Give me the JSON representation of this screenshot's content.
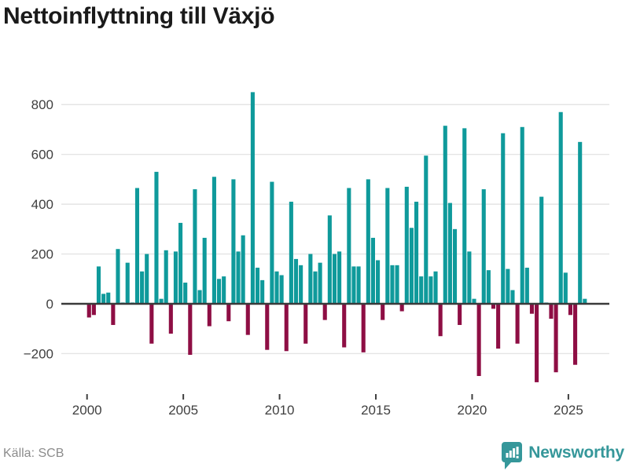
{
  "header": {
    "title": "Nettoinflyttning till Växjö"
  },
  "footer": {
    "source": "Källa: SCB",
    "brand": "Newsworthy"
  },
  "colors": {
    "positive": "#0f9a9b",
    "negative": "#8e0e44",
    "grid": "#e4e4e4",
    "zero_line": "#3a3a3a",
    "axis_text": "#3f3f3f",
    "title_text": "#1a1a1a",
    "source_text": "#8c8c8c",
    "brand_teal": "#35979a"
  },
  "chart_data": {
    "type": "bar",
    "title": "Nettoinflyttning till Växjö",
    "xlabel": "",
    "ylabel": "",
    "frequency": "quarterly",
    "x_start": "2000 Q1",
    "x_end": "2025 Q4",
    "x_tick_labels": [
      "2000",
      "2005",
      "2010",
      "2015",
      "2020",
      "2025"
    ],
    "y_ticks": [
      800,
      600,
      400,
      200,
      0,
      -200
    ],
    "ylim": [
      -340,
      880
    ],
    "grid": true,
    "legend": false,
    "series": [
      {
        "name": "Nettoinflyttning",
        "start_year": 2000,
        "values": [
          -55,
          -45,
          150,
          40,
          45,
          -85,
          220,
          5,
          165,
          5,
          465,
          130,
          200,
          -160,
          530,
          20,
          215,
          -120,
          210,
          325,
          85,
          -205,
          460,
          55,
          265,
          -90,
          510,
          100,
          110,
          -70,
          500,
          210,
          275,
          -125,
          850,
          145,
          95,
          -185,
          490,
          130,
          115,
          -190,
          410,
          180,
          155,
          -160,
          200,
          130,
          165,
          -65,
          355,
          200,
          210,
          -175,
          465,
          150,
          150,
          -195,
          500,
          265,
          175,
          -65,
          465,
          155,
          155,
          -30,
          470,
          305,
          410,
          110,
          595,
          110,
          130,
          -130,
          715,
          405,
          300,
          -85,
          705,
          210,
          20,
          -290,
          460,
          135,
          -20,
          -180,
          685,
          140,
          55,
          -160,
          710,
          145,
          -40,
          -315,
          430,
          5,
          -60,
          -275,
          770,
          125,
          -45,
          -245,
          650,
          20
        ]
      }
    ]
  }
}
